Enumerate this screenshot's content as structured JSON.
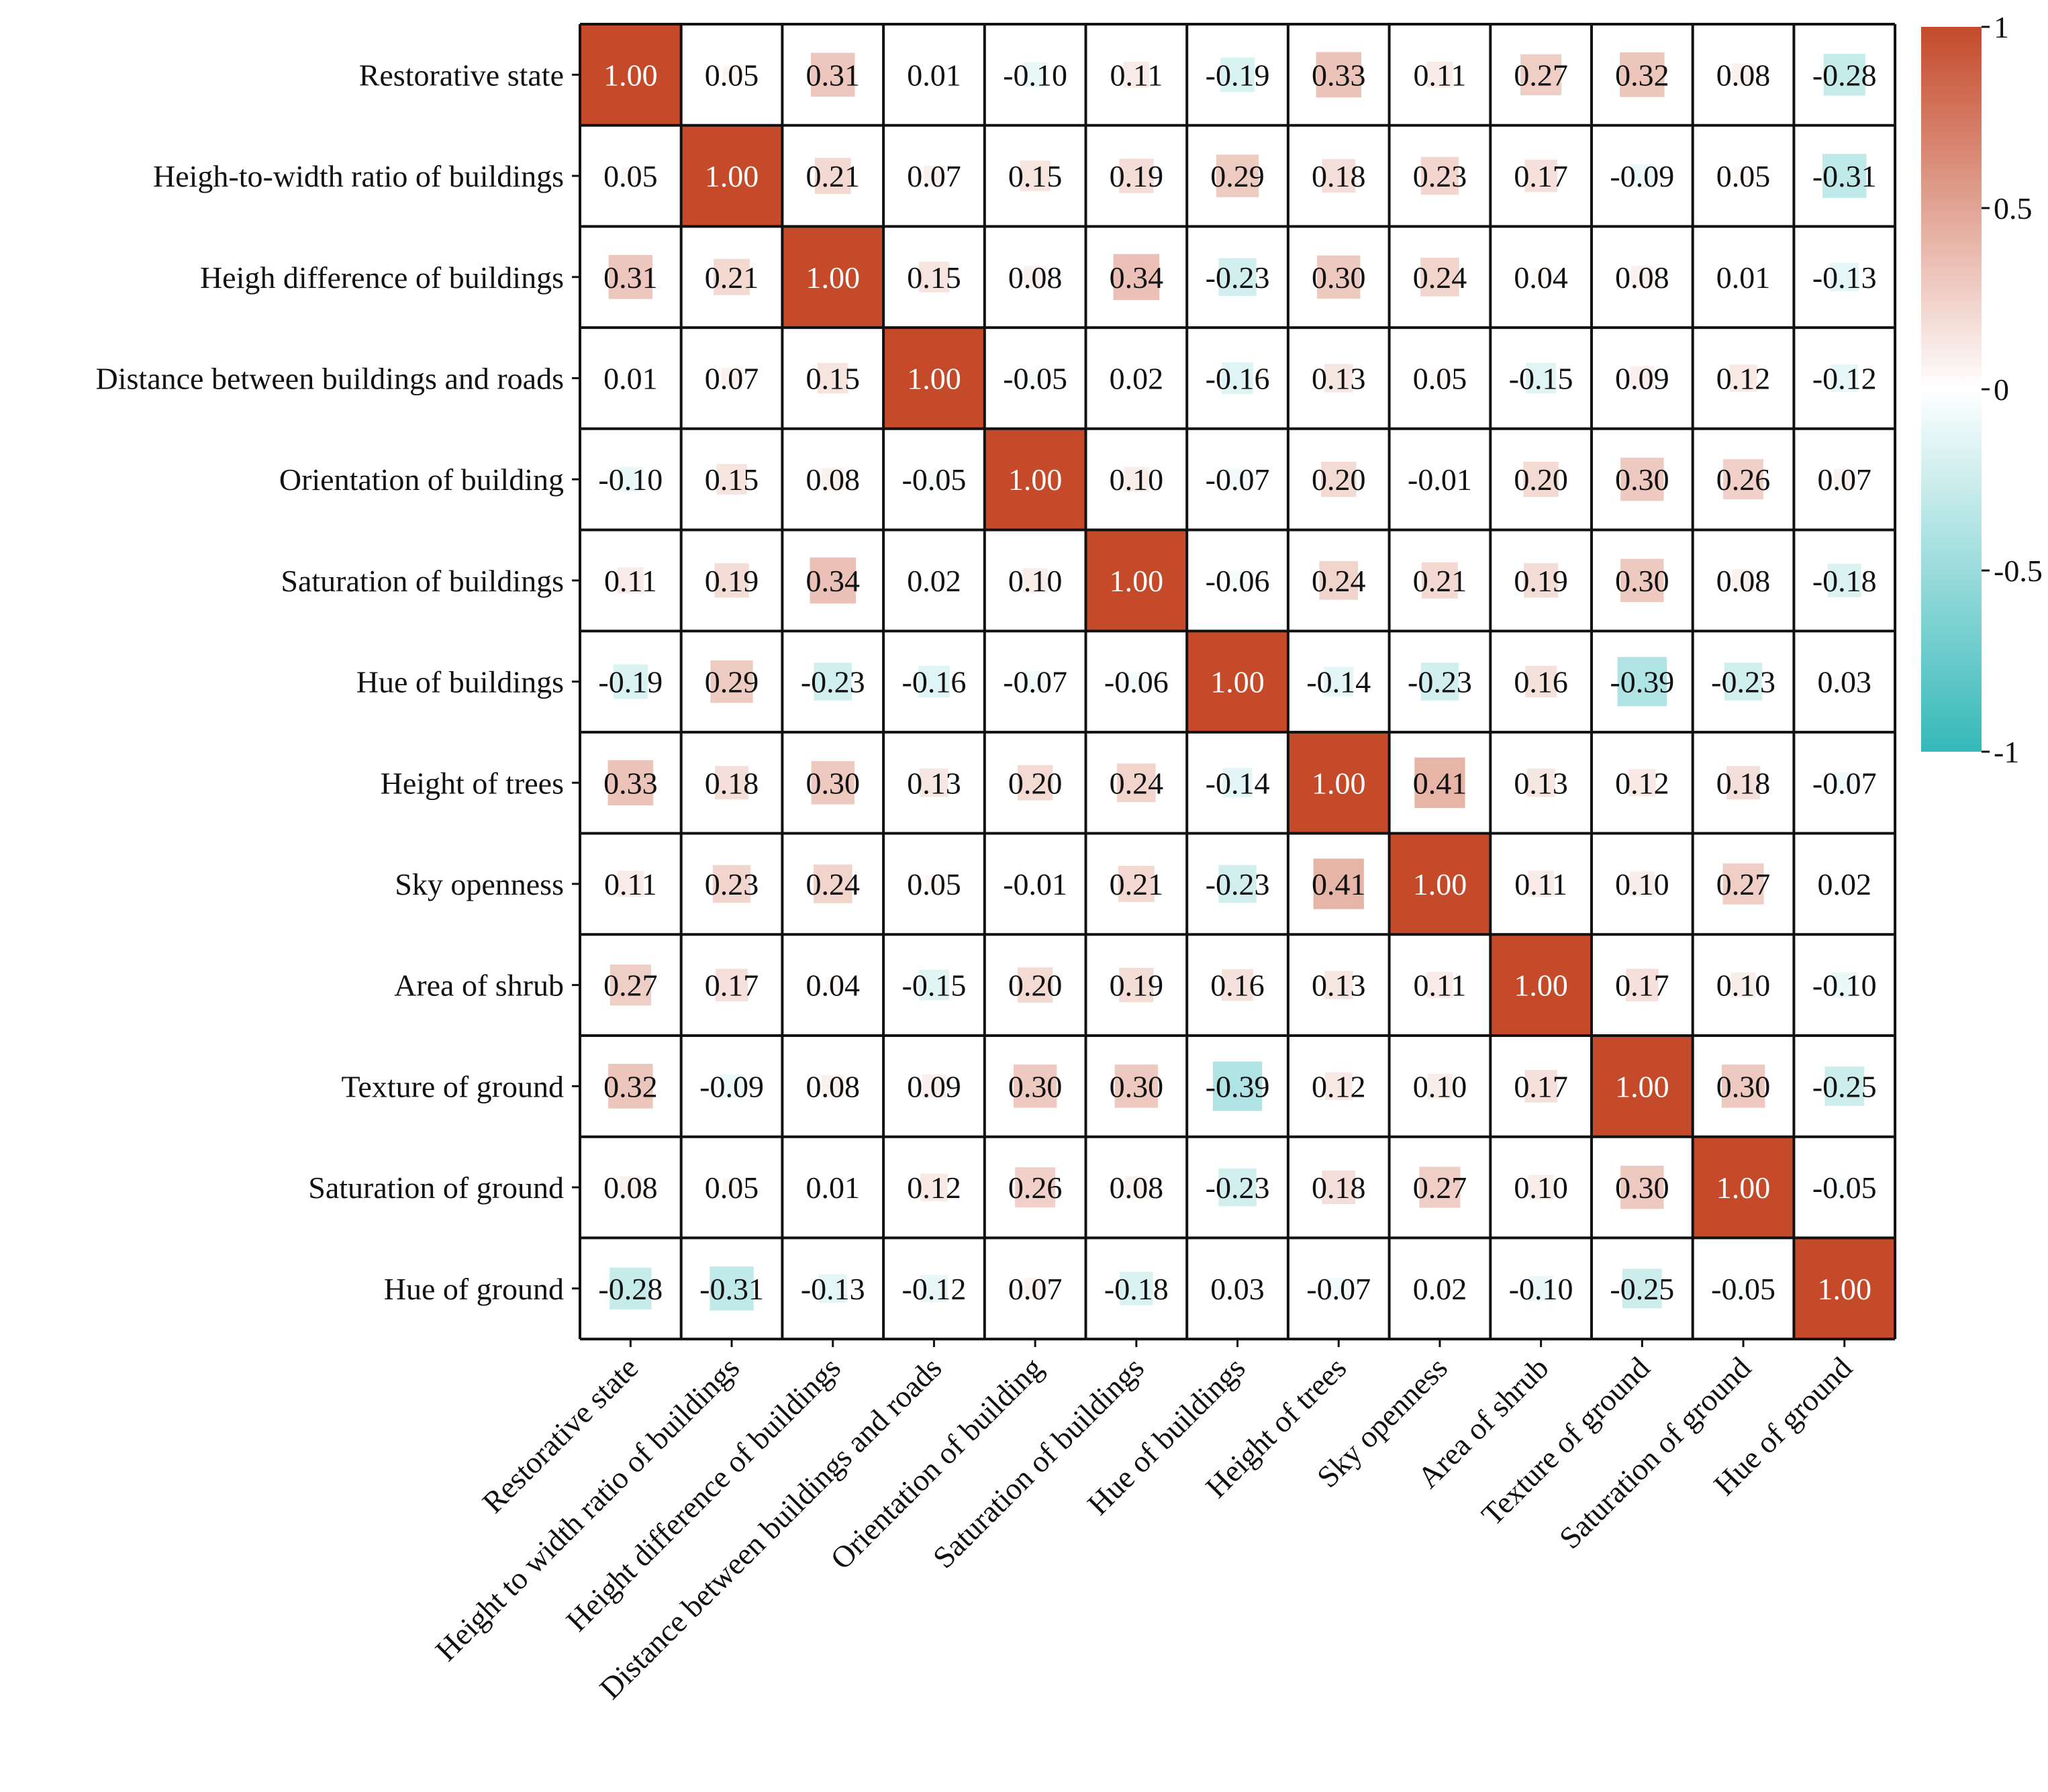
{
  "chart_data": {
    "type": "heatmap",
    "title": "",
    "row_labels": [
      "Restorative state",
      "Heigh-to-width ratio of buildings",
      "Heigh difference of buildings",
      "Distance between buildings and roads",
      "Orientation of building",
      "Saturation of  buildings",
      "Hue of buildings",
      "Height of trees",
      "Sky openness",
      "Area of shrub",
      "Texture of ground",
      "Saturation of  ground",
      "Hue of ground"
    ],
    "col_labels": [
      "Restorative state",
      "Height to width ratio of buildings",
      "Height difference  of buildings",
      "Distance between buildings and roads",
      "Orientation of building",
      "Saturation of  buildings",
      "Hue of buildings",
      "Height of trees",
      "Sky openness",
      "Area of shrub",
      "Texture of ground",
      "Saturation of  ground",
      "Hue of ground"
    ],
    "values": [
      [
        1.0,
        0.05,
        0.31,
        0.01,
        -0.1,
        0.11,
        -0.19,
        0.33,
        0.11,
        0.27,
        0.32,
        0.08,
        -0.28
      ],
      [
        0.05,
        1.0,
        0.21,
        0.07,
        0.15,
        0.19,
        0.29,
        0.18,
        0.23,
        0.17,
        -0.09,
        0.05,
        -0.31
      ],
      [
        0.31,
        0.21,
        1.0,
        0.15,
        0.08,
        0.34,
        -0.23,
        0.3,
        0.24,
        0.04,
        0.08,
        0.01,
        -0.13
      ],
      [
        0.01,
        0.07,
        0.15,
        1.0,
        -0.05,
        0.02,
        -0.16,
        0.13,
        0.05,
        -0.15,
        0.09,
        0.12,
        -0.12
      ],
      [
        -0.1,
        0.15,
        0.08,
        -0.05,
        1.0,
        0.1,
        -0.07,
        0.2,
        -0.01,
        0.2,
        0.3,
        0.26,
        0.07
      ],
      [
        0.11,
        0.19,
        0.34,
        0.02,
        0.1,
        1.0,
        -0.06,
        0.24,
        0.21,
        0.19,
        0.3,
        0.08,
        -0.18
      ],
      [
        -0.19,
        0.29,
        -0.23,
        -0.16,
        -0.07,
        -0.06,
        1.0,
        -0.14,
        -0.23,
        0.16,
        -0.39,
        -0.23,
        0.03
      ],
      [
        0.33,
        0.18,
        0.3,
        0.13,
        0.2,
        0.24,
        -0.14,
        1.0,
        0.41,
        0.13,
        0.12,
        0.18,
        -0.07
      ],
      [
        0.11,
        0.23,
        0.24,
        0.05,
        -0.01,
        0.21,
        -0.23,
        0.41,
        1.0,
        0.11,
        0.1,
        0.27,
        0.02
      ],
      [
        0.27,
        0.17,
        0.04,
        -0.15,
        0.2,
        0.19,
        0.16,
        0.13,
        0.11,
        1.0,
        0.17,
        0.1,
        -0.1
      ],
      [
        0.32,
        -0.09,
        0.08,
        0.09,
        0.3,
        0.3,
        -0.39,
        0.12,
        0.1,
        0.17,
        1.0,
        0.3,
        -0.25
      ],
      [
        0.08,
        0.05,
        0.01,
        0.12,
        0.26,
        0.08,
        -0.23,
        0.18,
        0.27,
        0.1,
        0.3,
        1.0,
        -0.05
      ],
      [
        -0.28,
        -0.31,
        -0.13,
        -0.12,
        0.07,
        -0.18,
        0.03,
        -0.07,
        0.02,
        -0.1,
        -0.25,
        -0.05,
        1.0
      ]
    ],
    "value_range": [
      -1,
      1
    ],
    "colorbar": {
      "ticks": [
        1,
        0.5,
        0,
        -0.5,
        -1
      ],
      "tick_labels": [
        "1",
        "0.5",
        "0",
        "-0.5",
        "-1"
      ],
      "positive_color": "#c44a2a",
      "negative_color": "#35b8b8",
      "zero_color": "#ffffff"
    },
    "cell_style": "square size scales with |value|",
    "grid": true
  }
}
